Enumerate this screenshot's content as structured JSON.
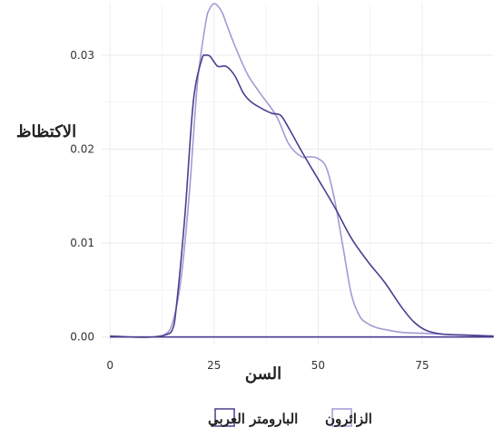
{
  "chart_data": {
    "type": "line",
    "title": "",
    "xlabel": "السن",
    "ylabel": "الاكتظاظ",
    "xlim": [
      -2,
      92
    ],
    "ylim": [
      -0.0008,
      0.0355
    ],
    "x_ticks": [
      0,
      25,
      50,
      75
    ],
    "x_tick_labels": [
      "0",
      "25",
      "50",
      "75"
    ],
    "y_ticks": [
      0.0,
      0.01,
      0.02,
      0.03
    ],
    "y_tick_labels": [
      "0.00",
      "0.01",
      "0.02",
      "0.03"
    ],
    "grid": true,
    "legend": {
      "position": "bottom"
    },
    "series": [
      {
        "name": "الزائرون",
        "color": "#a29bd4",
        "x": [
          0,
          5,
          10,
          13,
          15,
          17,
          19,
          21,
          23,
          24,
          25,
          26,
          27,
          28,
          30,
          33,
          36,
          40,
          43,
          46,
          48,
          50,
          52,
          54,
          56,
          58,
          60,
          62,
          64,
          66,
          70,
          75,
          80,
          86,
          92
        ],
        "y": [
          0.0001,
          0.0,
          0.0,
          0.0002,
          0.0015,
          0.006,
          0.015,
          0.027,
          0.0335,
          0.035,
          0.0355,
          0.0352,
          0.0345,
          0.0333,
          0.031,
          0.028,
          0.026,
          0.0235,
          0.0205,
          0.0192,
          0.0192,
          0.019,
          0.018,
          0.0145,
          0.0095,
          0.0045,
          0.0022,
          0.0014,
          0.001,
          0.0008,
          0.0005,
          0.0004,
          0.0003,
          0.0002,
          0.0001
        ]
      },
      {
        "name": "البارومتر العربي",
        "color": "#4a3f8f",
        "x": [
          0,
          5,
          10,
          13,
          15,
          16,
          18,
          20,
          22,
          23,
          24,
          25,
          26,
          28,
          30,
          32,
          34,
          37,
          39,
          41,
          43,
          46,
          50,
          54,
          58,
          62,
          66,
          70,
          73,
          76,
          80,
          86,
          92
        ],
        "y": [
          0.0001,
          0.0,
          0.0,
          0.0002,
          0.0008,
          0.0035,
          0.013,
          0.025,
          0.0295,
          0.03,
          0.0299,
          0.0293,
          0.0288,
          0.0288,
          0.0278,
          0.026,
          0.025,
          0.0242,
          0.0238,
          0.0236,
          0.0222,
          0.0198,
          0.0168,
          0.0138,
          0.0105,
          0.008,
          0.0058,
          0.0032,
          0.0016,
          0.0007,
          0.0003,
          0.0002,
          0.0001
        ]
      }
    ]
  }
}
